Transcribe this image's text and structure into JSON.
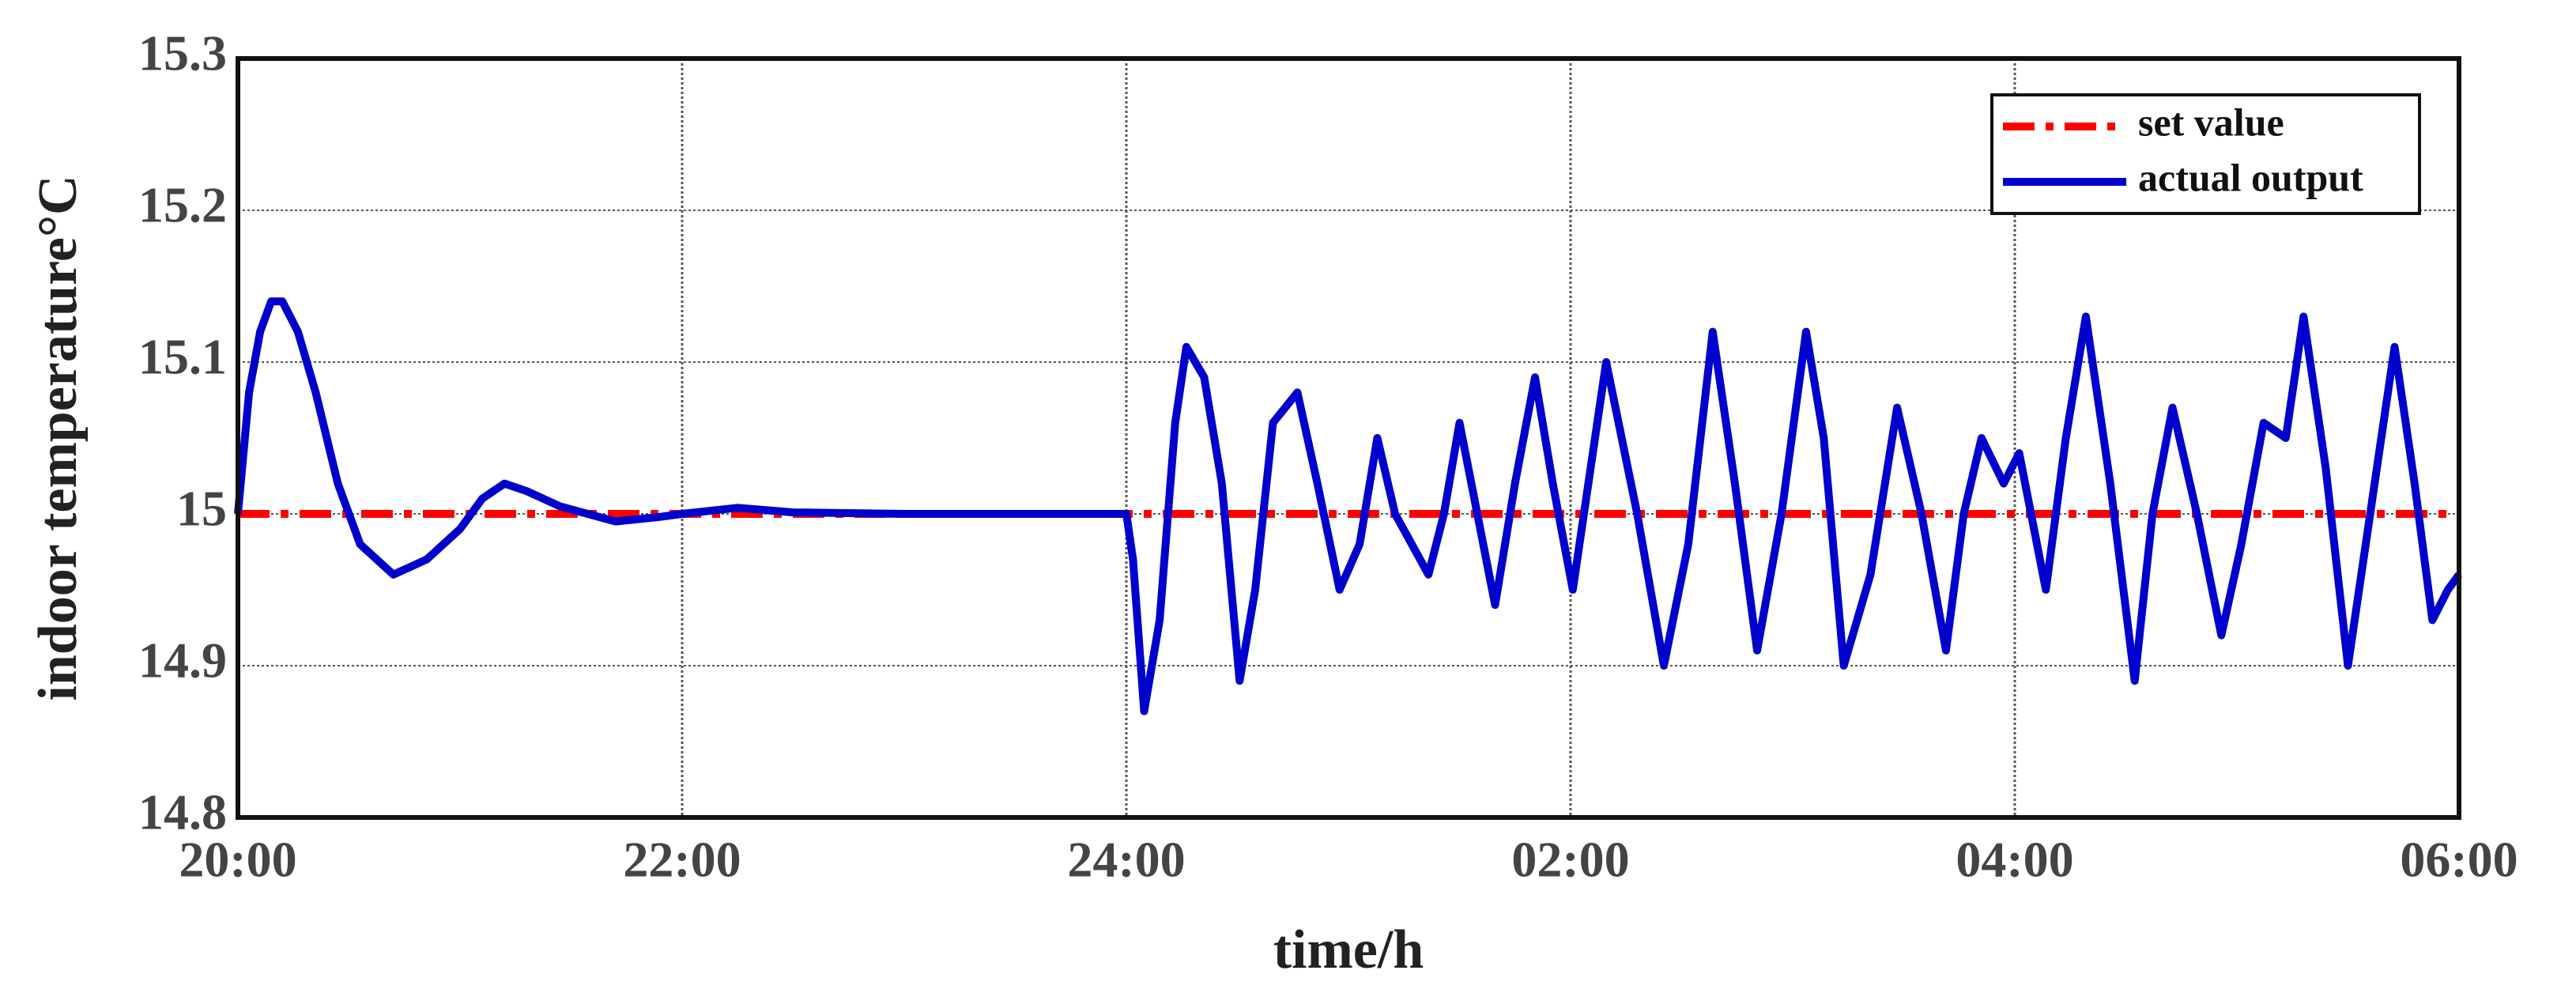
{
  "chart_data": {
    "type": "line",
    "x_label": "time/h",
    "y_label": "indoor temperature°C",
    "xlim": [
      20,
      30
    ],
    "ylim": [
      14.8,
      15.3
    ],
    "xticks": [
      {
        "value": 20,
        "label": "20:00"
      },
      {
        "value": 22,
        "label": "22:00"
      },
      {
        "value": 24,
        "label": "24:00"
      },
      {
        "value": 26,
        "label": "02:00"
      },
      {
        "value": 28,
        "label": "04:00"
      },
      {
        "value": 30,
        "label": "06:00"
      }
    ],
    "yticks": [
      14.8,
      14.9,
      {
        "value": 15.0,
        "label": "15"
      },
      15.1,
      15.2,
      15.3
    ],
    "grid": true,
    "legend": "upper right",
    "series": [
      {
        "name": "set value",
        "color": "#ff0000",
        "style": "dashdot",
        "x": [
          20,
          30
        ],
        "values": [
          15.0,
          15.0
        ]
      },
      {
        "name": "actual output",
        "color": "#0000cc",
        "style": "solid",
        "x": [
          20.0,
          20.05,
          20.1,
          20.15,
          20.2,
          20.27,
          20.35,
          20.45,
          20.55,
          20.7,
          20.85,
          21.0,
          21.1,
          21.2,
          21.3,
          21.45,
          21.7,
          21.9,
          22.0,
          22.25,
          22.5,
          23.0,
          23.5,
          24.0,
          24.03,
          24.08,
          24.15,
          24.22,
          24.27,
          24.35,
          24.43,
          24.51,
          24.58,
          24.66,
          24.77,
          24.86,
          24.96,
          25.05,
          25.13,
          25.21,
          25.36,
          25.43,
          25.5,
          25.58,
          25.66,
          25.75,
          25.84,
          25.92,
          26.01,
          26.16,
          26.3,
          26.42,
          26.53,
          26.64,
          26.74,
          26.84,
          26.95,
          27.06,
          27.14,
          27.23,
          27.35,
          27.47,
          27.58,
          27.69,
          27.77,
          27.85,
          27.95,
          28.02,
          28.14,
          28.23,
          28.32,
          28.43,
          28.54,
          28.62,
          28.71,
          28.82,
          28.93,
          29.02,
          29.12,
          29.22,
          29.3,
          29.4,
          29.5,
          29.6,
          29.71,
          29.8,
          29.88,
          29.95,
          30.0
        ],
        "values": [
          15.0,
          15.08,
          15.12,
          15.14,
          15.14,
          15.12,
          15.08,
          15.02,
          14.98,
          14.96,
          14.97,
          14.99,
          15.01,
          15.02,
          15.015,
          15.005,
          14.995,
          14.998,
          15.0,
          15.004,
          15.001,
          15.0,
          15.0,
          15.0,
          14.97,
          14.87,
          14.93,
          15.06,
          15.11,
          15.09,
          15.02,
          14.89,
          14.95,
          15.06,
          15.08,
          15.02,
          14.95,
          14.98,
          15.05,
          15.0,
          14.96,
          15.0,
          15.06,
          15.0,
          14.94,
          15.02,
          15.09,
          15.02,
          14.95,
          15.1,
          15.0,
          14.9,
          14.98,
          15.12,
          15.02,
          14.91,
          15.0,
          15.12,
          15.05,
          14.9,
          14.96,
          15.07,
          15.0,
          14.91,
          15.0,
          15.05,
          15.02,
          15.04,
          14.95,
          15.05,
          15.13,
          15.02,
          14.89,
          15.0,
          15.07,
          15.0,
          14.92,
          14.98,
          15.06,
          15.05,
          15.13,
          15.03,
          14.9,
          15.0,
          15.11,
          15.02,
          14.93,
          14.95,
          14.96
        ]
      }
    ]
  }
}
